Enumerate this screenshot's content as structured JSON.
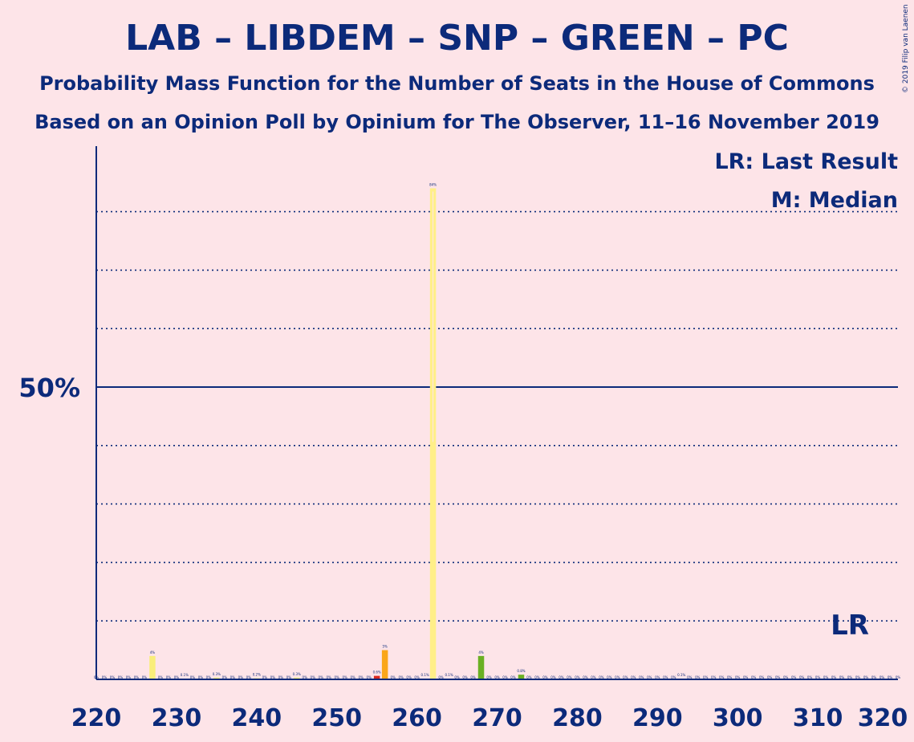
{
  "chart_data": {
    "type": "bar",
    "title": "LAB – LIBDEM – SNP – GREEN – PC",
    "subtitles": [
      "Probability Mass Function for the Number of Seats in the House of Commons",
      "Based on an Opinion Poll by Opinium for The Observer, 11–16 November 2019"
    ],
    "copyright": "© 2019 Filip van Laenen",
    "legend": {
      "position": "top-right",
      "entries": [
        "LR: Last Result",
        "M: Median"
      ]
    },
    "annotations": {
      "last_result_label": "LR",
      "last_result_seat": 314
    },
    "xlim": [
      220,
      320
    ],
    "x_ticks": [
      "220",
      "230",
      "240",
      "250",
      "260",
      "270",
      "280",
      "290",
      "300",
      "310",
      "320"
    ],
    "y_ticks": [
      {
        "value": 50,
        "label": "50%"
      }
    ],
    "ylim": [
      0,
      100
    ],
    "gridlines": [
      10,
      20,
      30,
      40,
      60,
      70,
      80
    ],
    "median_seat": 262,
    "colors": {
      "background": "#fde4e8",
      "text": "#0c2a7a",
      "default_bar": "#f9ee7a",
      "highlight_bar": "#ffef88",
      "lab": "#d9281e",
      "ld": "#faa61a",
      "green": "#6ab023"
    },
    "bars": [
      {
        "seat": 227,
        "value": 4,
        "label": "4%",
        "color": "#f9ee7a"
      },
      {
        "seat": 231,
        "value": 0.1,
        "label": "0.1%",
        "color": "#f9ee7a"
      },
      {
        "seat": 235,
        "value": 0.3,
        "label": "0.3%",
        "color": "#f9ee7a"
      },
      {
        "seat": 240,
        "value": 0.2,
        "label": "0.2%",
        "color": "#f9ee7a"
      },
      {
        "seat": 245,
        "value": 0.3,
        "label": "0.3%",
        "color": "#f9ee7a"
      },
      {
        "seat": 255,
        "value": 0.6,
        "label": "0.6%",
        "color": "#d9281e"
      },
      {
        "seat": 256,
        "value": 5,
        "label": "5%",
        "color": "#faa61a"
      },
      {
        "seat": 261,
        "value": 0.1,
        "label": "0.1%",
        "color": "#f9ee7a"
      },
      {
        "seat": 262,
        "value": 84,
        "label": "84%",
        "color": "#ffef88"
      },
      {
        "seat": 264,
        "value": 0.1,
        "label": "0.1%",
        "color": "#f9ee7a"
      },
      {
        "seat": 268,
        "value": 4,
        "label": "4%",
        "color": "#6ab023"
      },
      {
        "seat": 273,
        "value": 0.8,
        "label": "0.8%",
        "color": "#6ab023"
      },
      {
        "seat": 293,
        "value": 0.1,
        "label": "0.1%",
        "color": "#f9ee7a"
      }
    ],
    "zero_label": "0%"
  }
}
